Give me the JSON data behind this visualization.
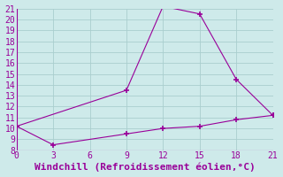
{
  "line1_x": [
    0,
    9,
    12,
    15,
    18,
    21
  ],
  "line1_y": [
    10.2,
    13.5,
    21.2,
    20.5,
    14.5,
    11.2
  ],
  "line2_x": [
    0,
    3,
    9,
    12,
    15,
    18,
    21
  ],
  "line2_y": [
    10.2,
    8.5,
    9.5,
    10.0,
    10.2,
    10.8,
    11.2
  ],
  "line_color": "#990099",
  "background_color": "#ceeaea",
  "grid_color": "#aacece",
  "xlabel": "Windchill (Refroidissement éolien,°C)",
  "xlim": [
    0,
    21
  ],
  "ylim": [
    8,
    21
  ],
  "xticks": [
    0,
    3,
    6,
    9,
    12,
    15,
    18,
    21
  ],
  "yticks": [
    8,
    9,
    10,
    11,
    12,
    13,
    14,
    15,
    16,
    17,
    18,
    19,
    20,
    21
  ],
  "xlabel_fontsize": 8,
  "tick_fontsize": 7,
  "marker": "+"
}
